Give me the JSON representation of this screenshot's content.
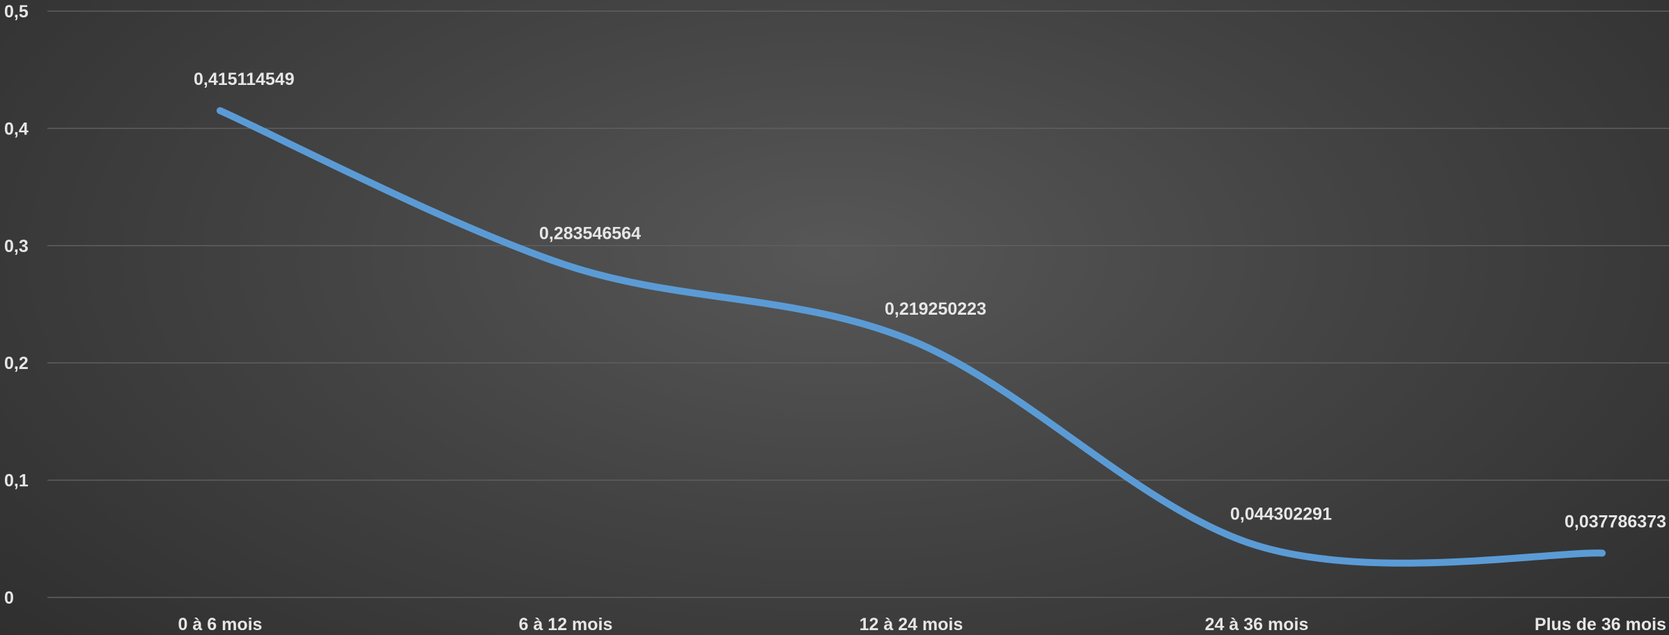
{
  "chart_data": {
    "type": "line",
    "title": "",
    "xlabel": "",
    "ylabel": "",
    "categories": [
      "0 à 6 mois",
      "6 à 12 mois",
      "12 à 24 mois",
      "24 à 36 mois",
      "Plus de 36 mois"
    ],
    "series": [
      {
        "values": [
          0.415114549,
          0.283546564,
          0.219250223,
          0.044302291,
          0.037786373
        ],
        "data_labels": [
          "0,415114549",
          "0,283546564",
          "0,219250223",
          "0,044302291",
          "0,037786373"
        ]
      }
    ],
    "ylim": [
      0,
      0.5
    ],
    "yticks": [
      0,
      0.1,
      0.2,
      0.3,
      0.4,
      0.5
    ],
    "ytick_labels": [
      "0",
      "0,1",
      "0,2",
      "0,3",
      "0,4",
      "0,5"
    ],
    "smooth_line": true,
    "grid": true,
    "legend": "none",
    "colors": {
      "line": "#5b9bd5",
      "grid": "#5f5f5f",
      "text": "#e6e6e6"
    }
  }
}
